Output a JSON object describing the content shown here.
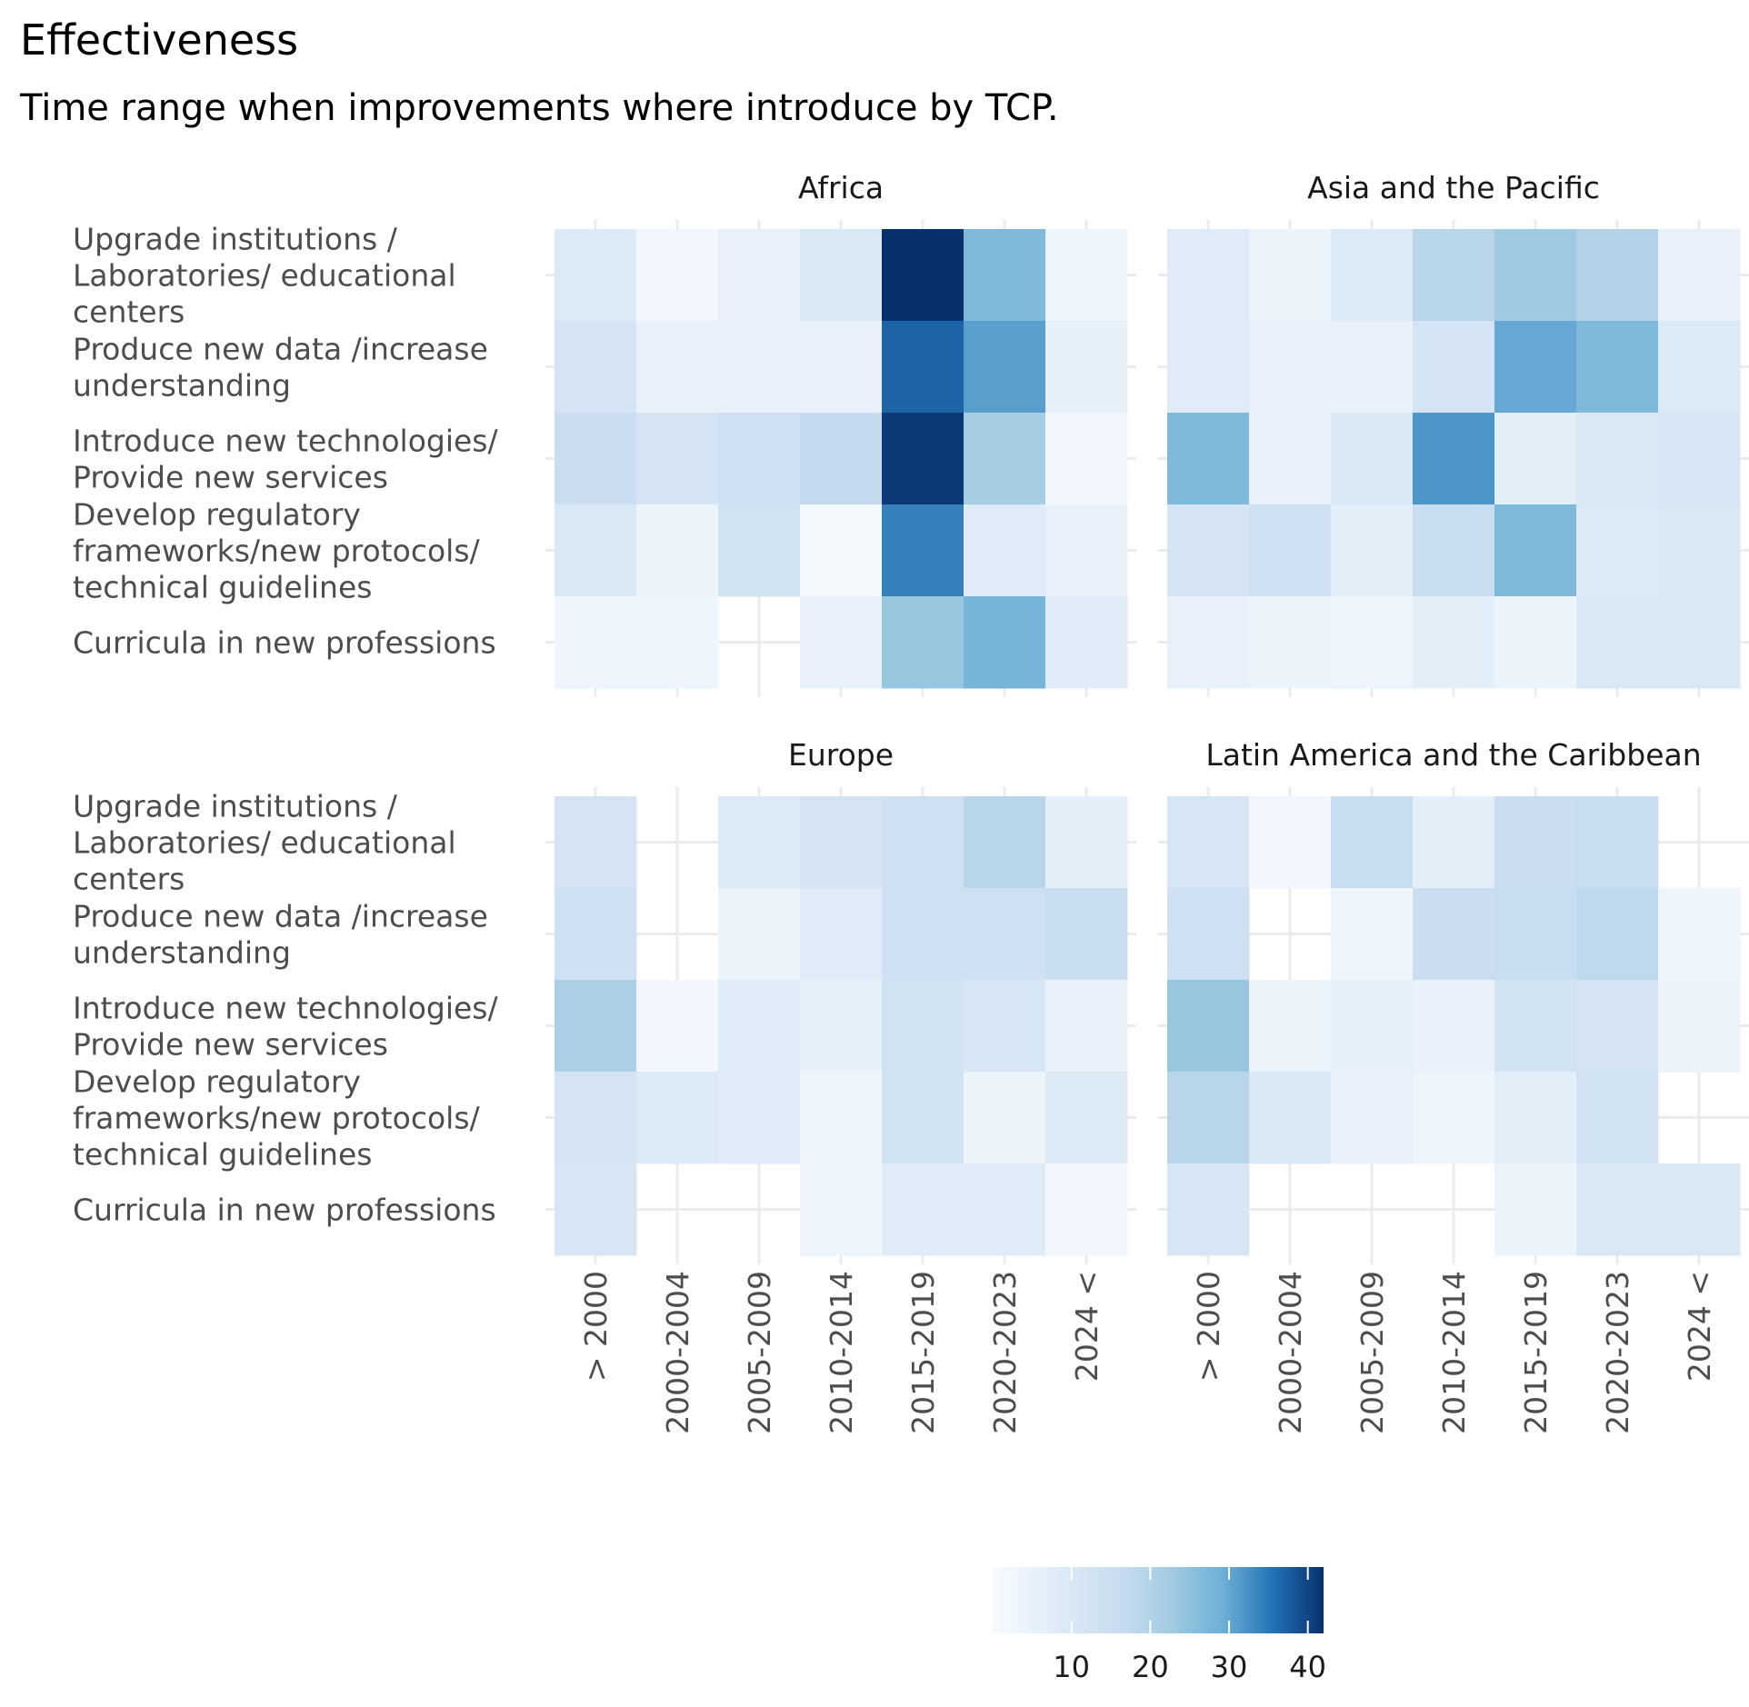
{
  "chart_data": {
    "type": "heatmap",
    "title": "Effectiveness",
    "subtitle": "Time range when improvements where introduce by TCP.",
    "x_categories": [
      " > 2000",
      "2000-2004",
      "2005-2009",
      "2010-2014",
      "2015-2019",
      "2020-2023",
      "2024 <"
    ],
    "y_categories": [
      [
        "Upgrade institutions /",
        "Laboratories/  educational",
        "centers"
      ],
      [
        "Produce new data /increase",
        "understanding"
      ],
      [
        "Introduce new technologies/",
        "Provide new services"
      ],
      [
        "Develop regulatory",
        "frameworks/new protocols/",
        "technical guidelines"
      ],
      [
        "Curricula in new professions"
      ]
    ],
    "color_scale": {
      "min": 0,
      "max": 42,
      "low": "#f7fbff",
      "high": "#08306b"
    },
    "legend": {
      "ticks": [
        10,
        20,
        30,
        40
      ],
      "position": "bottom"
    },
    "grid": true,
    "panels": [
      {
        "name": "Africa",
        "values": [
          [
            9,
            2,
            5,
            10,
            42,
            27,
            3
          ],
          [
            12,
            5,
            5,
            5,
            37,
            31,
            6
          ],
          [
            15,
            12,
            14,
            17,
            41,
            22,
            2
          ],
          [
            10,
            4,
            13,
            1,
            34,
            8,
            5
          ],
          [
            3,
            3,
            null,
            5,
            24,
            28,
            8
          ]
        ]
      },
      {
        "name": "Asia and the Pacific",
        "values": [
          [
            8,
            4,
            9,
            19,
            23,
            20,
            5
          ],
          [
            8,
            5,
            5,
            12,
            30,
            27,
            9
          ],
          [
            27,
            5,
            10,
            32,
            7,
            10,
            11
          ],
          [
            12,
            14,
            7,
            16,
            27,
            9,
            10
          ],
          [
            5,
            4,
            3,
            7,
            4,
            10,
            10
          ]
        ]
      },
      {
        "name": "Europe",
        "values": [
          [
            12,
            null,
            9,
            12,
            14,
            19,
            7
          ],
          [
            14,
            null,
            4,
            8,
            14,
            14,
            16
          ],
          [
            21,
            2,
            8,
            6,
            13,
            11,
            5
          ],
          [
            12,
            9,
            8,
            3,
            13,
            4,
            9
          ],
          [
            11,
            null,
            null,
            3,
            8,
            8,
            2
          ]
        ]
      },
      {
        "name": "Latin America and the Caribbean",
        "values": [
          [
            11,
            2,
            16,
            7,
            15,
            16,
            null
          ],
          [
            14,
            null,
            3,
            15,
            16,
            18,
            3
          ],
          [
            24,
            4,
            6,
            5,
            13,
            12,
            4
          ],
          [
            19,
            10,
            5,
            3,
            7,
            13,
            null
          ],
          [
            11,
            null,
            null,
            null,
            4,
            10,
            10
          ]
        ]
      }
    ]
  }
}
